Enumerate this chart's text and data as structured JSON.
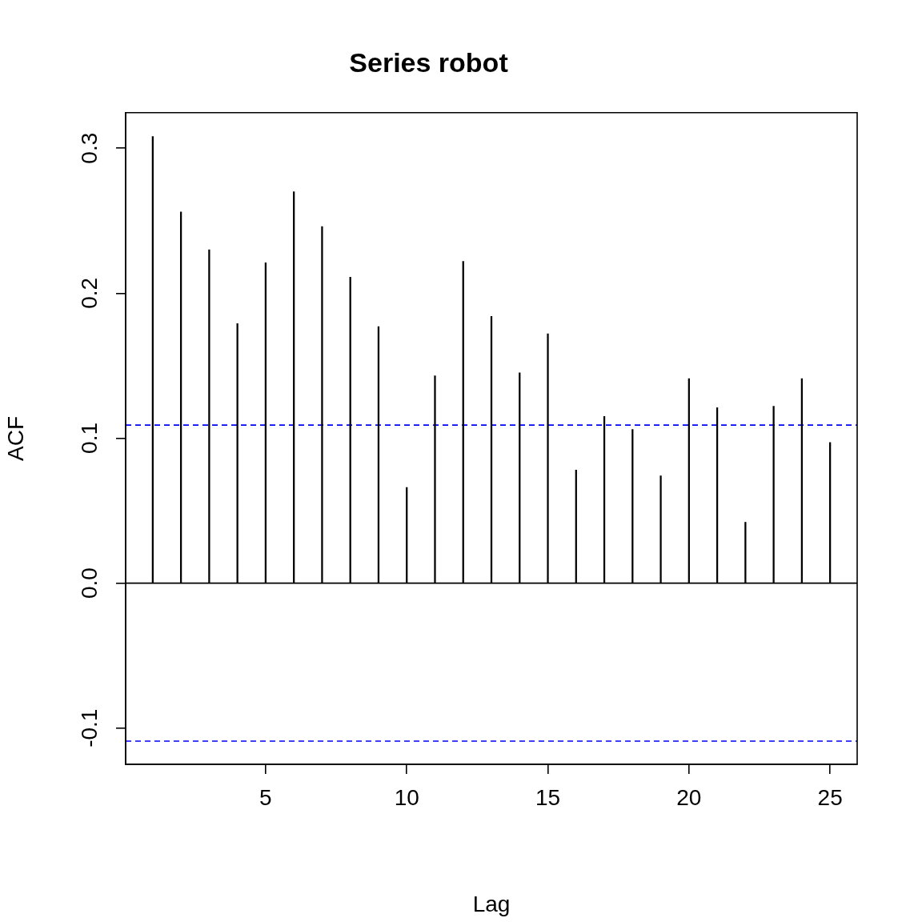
{
  "chart_data": {
    "type": "bar",
    "title": "Series robot",
    "xlabel": "Lag",
    "ylabel": "ACF",
    "x": [
      1,
      2,
      3,
      4,
      5,
      6,
      7,
      8,
      9,
      10,
      11,
      12,
      13,
      14,
      15,
      16,
      17,
      18,
      19,
      20,
      21,
      22,
      23,
      24,
      25
    ],
    "values": [
      0.308,
      0.256,
      0.23,
      0.179,
      0.221,
      0.27,
      0.246,
      0.211,
      0.177,
      0.066,
      0.143,
      0.222,
      0.184,
      0.145,
      0.172,
      0.078,
      0.115,
      0.106,
      0.074,
      0.141,
      0.121,
      0.042,
      0.122,
      0.141,
      0.097
    ],
    "color": "#000000",
    "xlim": [
      0.04,
      25.96
    ],
    "xticks": [
      5,
      10,
      15,
      20,
      25
    ],
    "ylim": [
      -0.125,
      0.3245
    ],
    "yticks": [
      -0.1,
      {
        "value": 0,
        "label": "0.0"
      },
      0.1,
      0.2,
      0.3
    ],
    "ref_lines": [
      {
        "axis": "y",
        "value": 0,
        "color": "#000000",
        "line_style": "solid"
      },
      {
        "axis": "y",
        "value": 0.109,
        "color": "#0000ff",
        "line_style": "dashed"
      },
      {
        "axis": "y",
        "value": -0.109,
        "color": "#0000ff",
        "line_style": "dashed"
      }
    ],
    "grid": false,
    "legend": false
  }
}
